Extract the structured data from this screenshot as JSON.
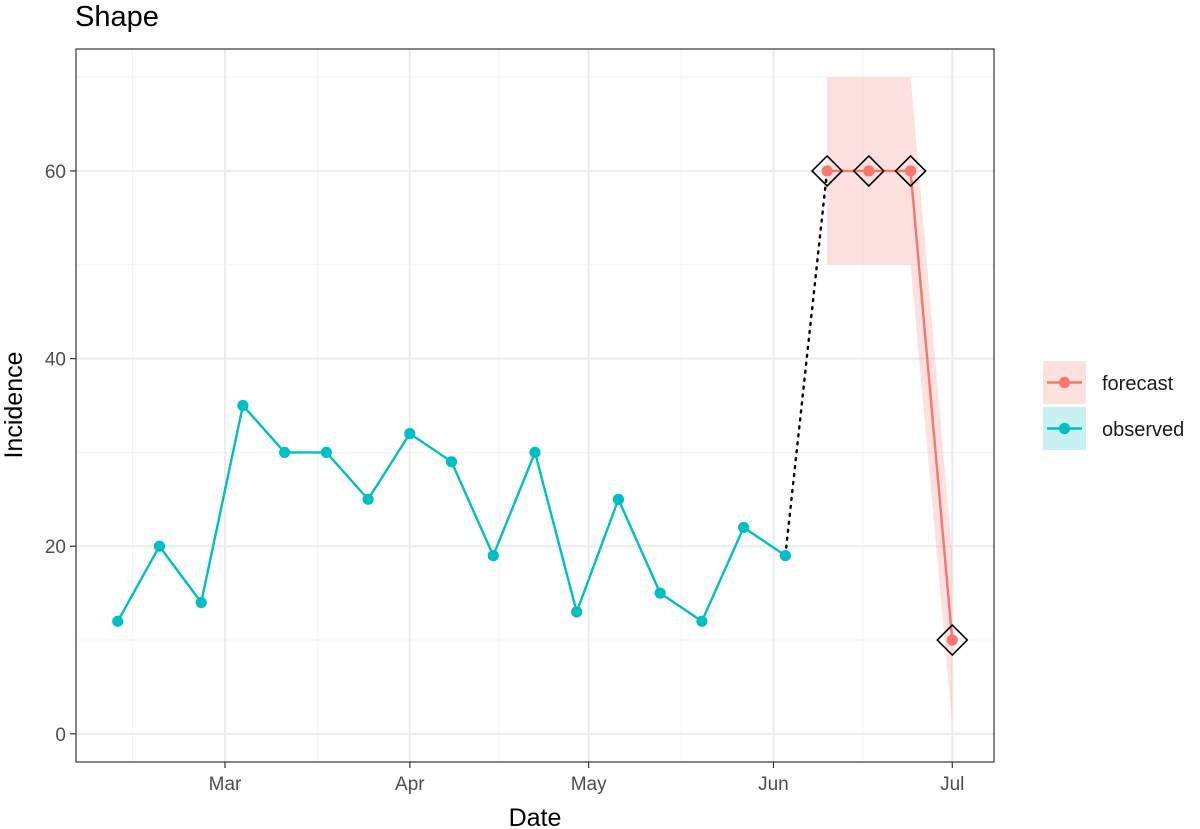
{
  "chart_data": {
    "type": "line",
    "title": "Shape",
    "xlabel": "Date",
    "ylabel": "Incidence",
    "x_type": "date",
    "xlim": [
      "2020-02-05",
      "2020-07-08"
    ],
    "ylim": [
      -3,
      73
    ],
    "x_ticks": [
      {
        "date": "2020-03-01",
        "label": "Mar"
      },
      {
        "date": "2020-04-01",
        "label": "Apr"
      },
      {
        "date": "2020-05-01",
        "label": "May"
      },
      {
        "date": "2020-06-01",
        "label": "Jun"
      },
      {
        "date": "2020-07-01",
        "label": "Jul"
      }
    ],
    "y_ticks": [
      0,
      20,
      40,
      60
    ],
    "grid": true,
    "legend_position": "right",
    "series": [
      {
        "name": "observed",
        "color": "#00BFC4",
        "points": [
          {
            "x": "2020-02-12",
            "y": 12
          },
          {
            "x": "2020-02-19",
            "y": 20
          },
          {
            "x": "2020-02-26",
            "y": 14
          },
          {
            "x": "2020-03-04",
            "y": 35
          },
          {
            "x": "2020-03-11",
            "y": 30
          },
          {
            "x": "2020-03-18",
            "y": 30
          },
          {
            "x": "2020-03-25",
            "y": 25
          },
          {
            "x": "2020-04-01",
            "y": 32
          },
          {
            "x": "2020-04-08",
            "y": 29
          },
          {
            "x": "2020-04-15",
            "y": 19
          },
          {
            "x": "2020-04-22",
            "y": 30
          },
          {
            "x": "2020-04-29",
            "y": 13
          },
          {
            "x": "2020-05-06",
            "y": 25
          },
          {
            "x": "2020-05-13",
            "y": 15
          },
          {
            "x": "2020-05-20",
            "y": 12
          },
          {
            "x": "2020-05-27",
            "y": 22
          },
          {
            "x": "2020-06-03",
            "y": 19
          }
        ]
      },
      {
        "name": "forecast",
        "color": "#F8766D",
        "points": [
          {
            "x": "2020-06-10",
            "y": 60,
            "lower": 50,
            "upper": 70
          },
          {
            "x": "2020-06-17",
            "y": 60,
            "lower": 50,
            "upper": 70
          },
          {
            "x": "2020-06-24",
            "y": 60,
            "lower": 50,
            "upper": 70
          },
          {
            "x": "2020-07-01",
            "y": 10,
            "lower": 1,
            "upper": 19
          }
        ]
      }
    ],
    "connector": {
      "style": "dotted",
      "color": "#000000",
      "from": {
        "x": "2020-06-03",
        "y": 19
      },
      "to": {
        "x": "2020-06-10",
        "y": 60
      }
    },
    "highlight_markers": {
      "shape": "diamond",
      "series": "forecast"
    }
  }
}
